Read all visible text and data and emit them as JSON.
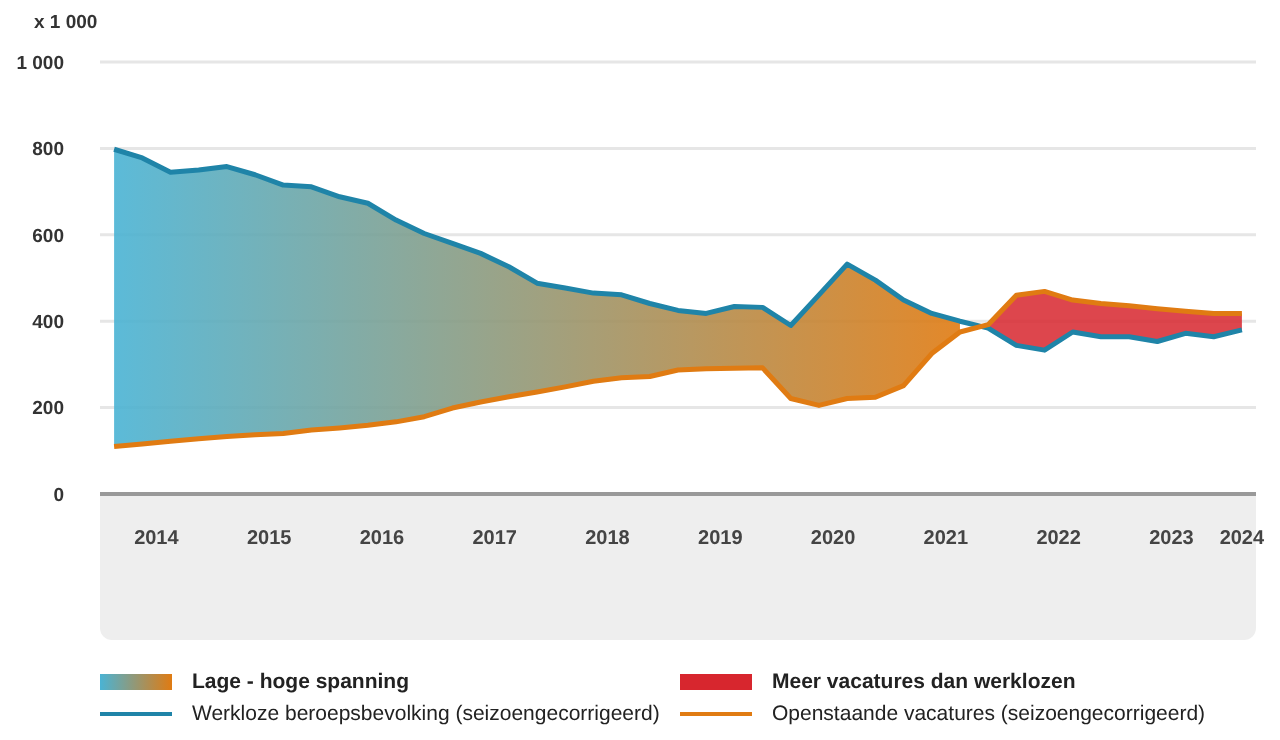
{
  "chart_data": {
    "type": "line",
    "ylabel": "x 1 000",
    "x": [
      2014,
      2014.25,
      2014.5,
      2014.75,
      2015,
      2015.25,
      2015.5,
      2015.75,
      2016,
      2016.25,
      2016.5,
      2016.75,
      2017,
      2017.25,
      2017.5,
      2017.75,
      2018,
      2018.25,
      2018.5,
      2018.75,
      2019,
      2019.25,
      2019.5,
      2019.75,
      2020,
      2020.25,
      2020.5,
      2020.75,
      2021,
      2021.25,
      2021.5,
      2021.75,
      2022,
      2022.25,
      2022.5,
      2022.75,
      2023,
      2023.25,
      2023.5,
      2023.75,
      2024
    ],
    "series": [
      {
        "name": "Werkloze beroepsbevolking (seizoengecorrigeerd)",
        "color": "#1f84a8",
        "values": [
          798,
          778,
          745,
          750,
          758,
          739,
          715,
          711,
          688,
          673,
          634,
          603,
          580,
          557,
          526,
          488,
          477,
          465,
          461,
          441,
          425,
          418,
          434,
          432,
          390,
          461,
          532,
          495,
          449,
          418,
          400,
          384,
          344,
          333,
          375,
          364,
          364,
          353,
          372,
          364,
          380
        ]
      },
      {
        "name": "Openstaande vacatures (seizoengecorrigeerd)",
        "color": "#e07b12",
        "values": [
          110,
          116,
          122,
          128,
          133,
          137,
          140,
          148,
          153,
          159,
          167,
          179,
          199,
          213,
          225,
          236,
          248,
          261,
          269,
          272,
          287,
          290,
          291,
          292,
          221,
          205,
          221,
          224,
          251,
          325,
          375,
          392,
          460,
          469,
          449,
          441,
          436,
          429,
          423,
          418,
          418
        ]
      },
      {
        "name": "Lage - hoge spanning",
        "type": "area",
        "color": "#4ab3d4",
        "values": [
          798,
          778,
          745,
          750,
          758,
          739,
          715,
          711,
          688,
          673,
          634,
          603,
          580,
          557,
          526,
          488,
          477,
          465,
          461,
          441,
          425,
          418,
          434,
          432,
          390,
          461,
          532,
          495,
          449,
          418,
          400,
          null,
          null,
          null,
          null,
          null,
          null,
          null,
          null,
          null,
          null
        ]
      },
      {
        "name": "Meer vacatures dan werklozen",
        "type": "area",
        "color": "#d7262e",
        "values": [
          null,
          null,
          null,
          null,
          null,
          null,
          null,
          null,
          null,
          null,
          null,
          null,
          null,
          null,
          null,
          null,
          null,
          null,
          null,
          null,
          null,
          null,
          null,
          null,
          null,
          null,
          null,
          null,
          null,
          null,
          null,
          392,
          460,
          469,
          449,
          441,
          436,
          429,
          423,
          418,
          418
        ]
      }
    ],
    "xlim": [
      2013.875,
      2024.125
    ],
    "xticks": [
      {
        "value": 2014.375,
        "label": "2014"
      },
      {
        "value": 2015.375,
        "label": "2015"
      },
      {
        "value": 2016.375,
        "label": "2016"
      },
      {
        "value": 2017.375,
        "label": "2017"
      },
      {
        "value": 2018.375,
        "label": "2018"
      },
      {
        "value": 2019.375,
        "label": "2019"
      },
      {
        "value": 2020.375,
        "label": "2020"
      },
      {
        "value": 2021.375,
        "label": "2021"
      },
      {
        "value": 2022.375,
        "label": "2022"
      },
      {
        "value": 2023.375,
        "label": "2023"
      },
      {
        "value": 2024,
        "label": "2024"
      }
    ],
    "ylim": [
      0,
      1000
    ],
    "yticks": [
      0,
      200,
      400,
      600,
      {
        "value": 800,
        "label": "800"
      },
      {
        "value": 1000,
        "label": "1 000"
      }
    ],
    "grid": "y",
    "legend": "bottom",
    "marker": "none",
    "line_style": "solid"
  }
}
